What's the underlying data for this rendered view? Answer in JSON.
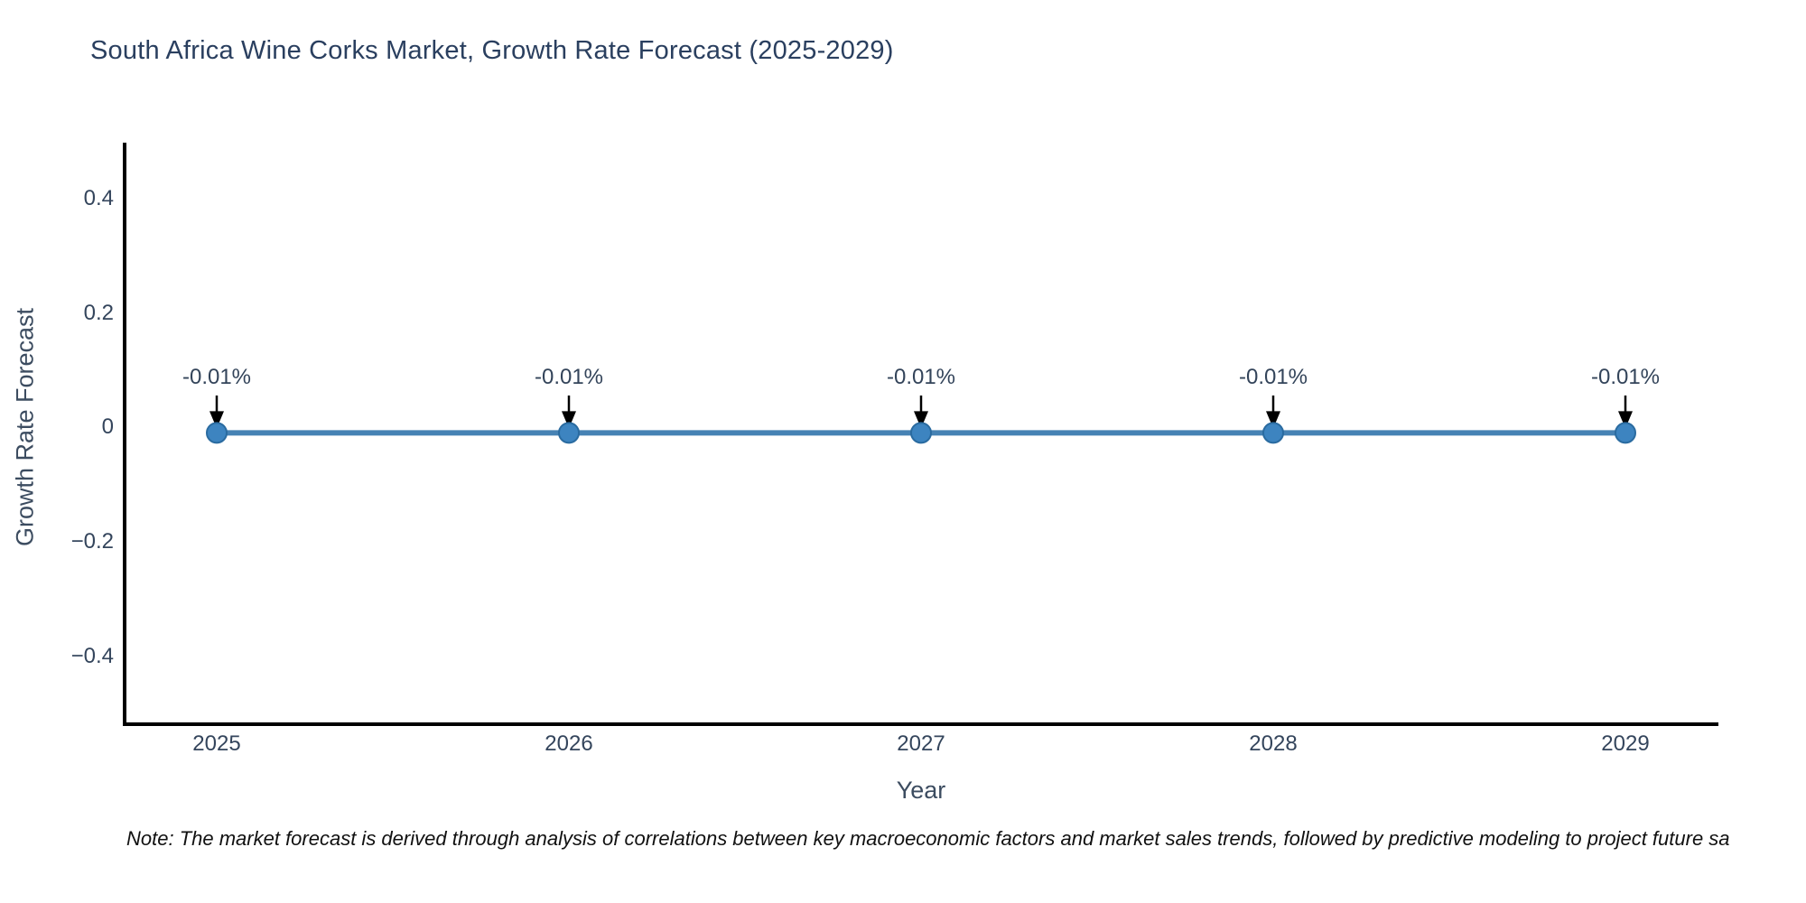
{
  "chart_data": {
    "type": "line",
    "title": "South Africa Wine Corks Market, Growth Rate Forecast (2025-2029)",
    "xlabel": "Year",
    "ylabel": "Growth Rate Forecast",
    "x": [
      2025,
      2026,
      2027,
      2028,
      2029
    ],
    "values": [
      -0.01,
      -0.01,
      -0.01,
      -0.01,
      -0.01
    ],
    "point_labels": [
      "-0.01%",
      "-0.01%",
      "-0.01%",
      "-0.01%",
      "-0.01%"
    ],
    "x_tick_labels": [
      "2025",
      "2026",
      "2027",
      "2028",
      "2029"
    ],
    "y_ticks": [
      0.4,
      0.2,
      0,
      -0.2,
      -0.4
    ],
    "y_tick_labels": [
      "0.4",
      "0.2",
      "0",
      "−0.2",
      "−0.4"
    ],
    "ylim": [
      -0.52,
      0.5
    ],
    "grid": false,
    "legend": false,
    "note": "Note: The market forecast is derived through analysis of correlations between key macroeconomic factors and market sales trends, followed by predictive modeling to project future sa",
    "colors": {
      "line": "#4682b4",
      "marker": "#3d84c0",
      "marker_edge": "#2a6ba0",
      "axis": "#000000",
      "annotation_arrow": "#000000",
      "text": "#2a3f5f"
    }
  }
}
